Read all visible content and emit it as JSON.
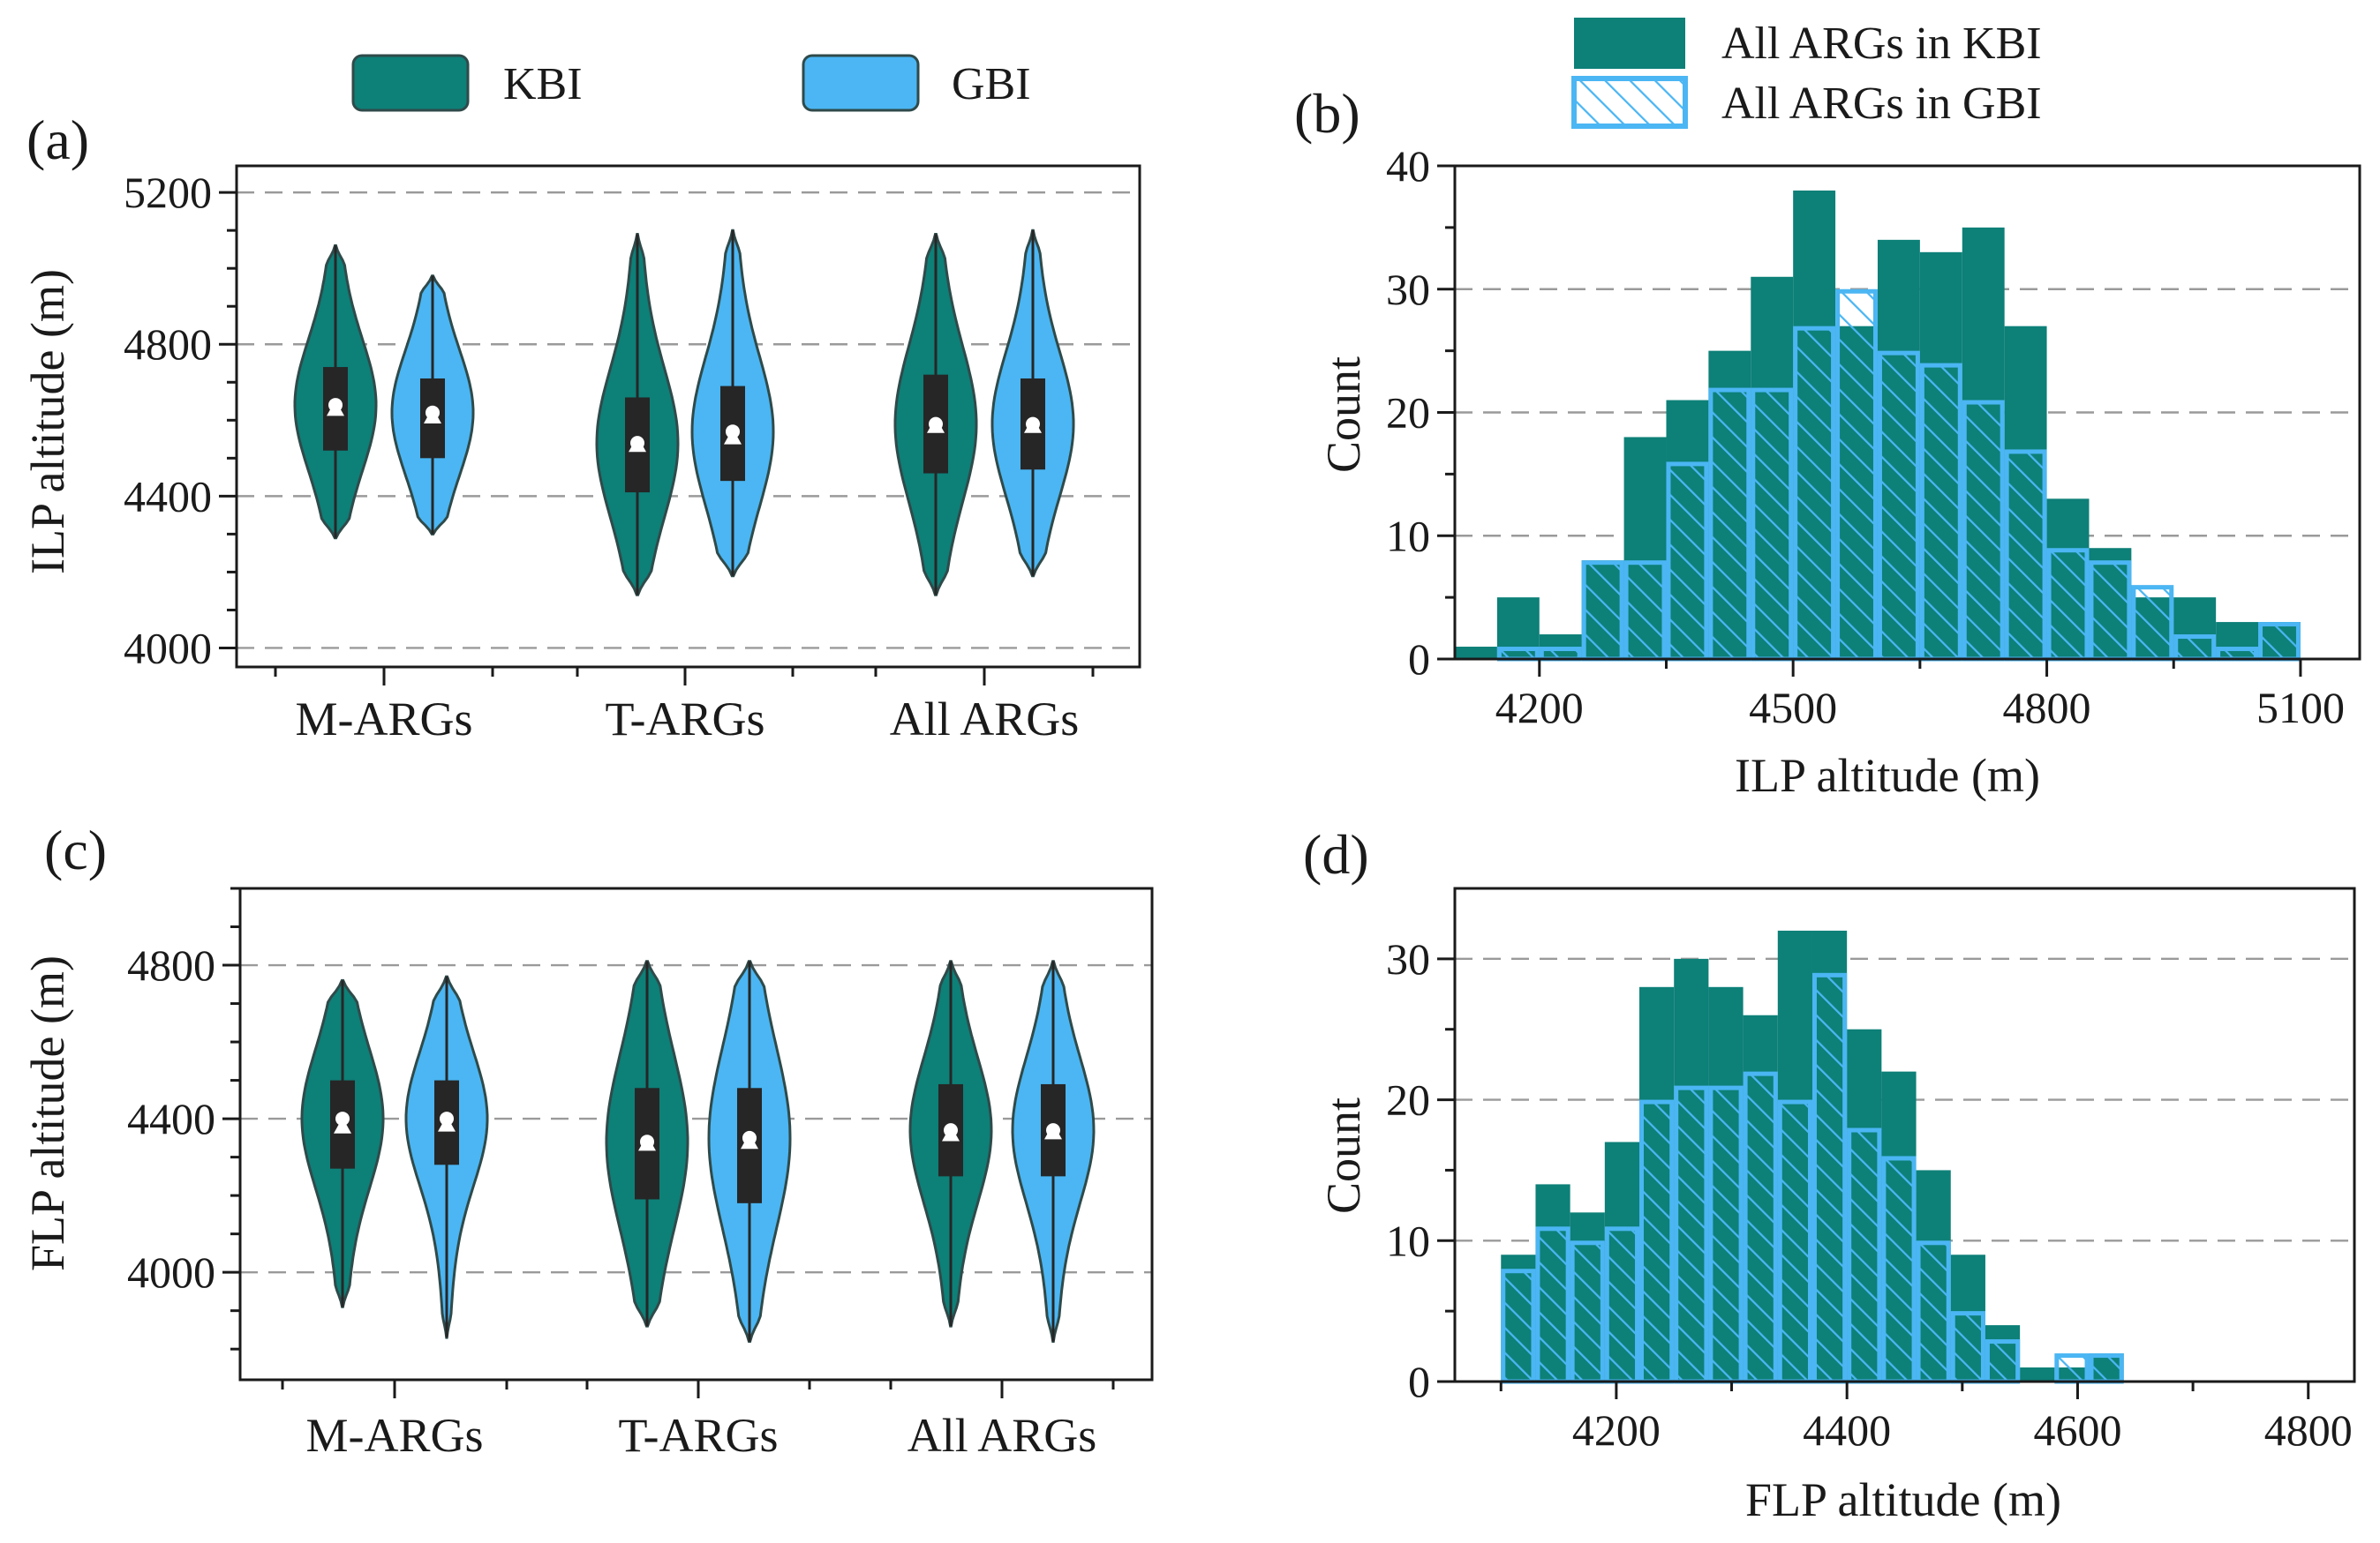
{
  "colors": {
    "kbi": "#0d8078",
    "gbi": "#4bb6f3",
    "outline": "#2f4a4a",
    "box": "#262626",
    "grid": "#9a9a9a"
  },
  "legend_top": {
    "kbi": "KBI",
    "gbi": "GBI"
  },
  "legend_hist": {
    "kbi": "All ARGs in KBI",
    "gbi": "All ARGs in GBI"
  },
  "chart_data": [
    {
      "panel": "(a)",
      "type": "violin",
      "ylabel": "ILP altitude (m)",
      "ylim": [
        3950,
        5270
      ],
      "yticks": [
        4000,
        4400,
        4800,
        5200
      ],
      "ytick_labels": [
        "4000",
        "4400",
        "4800",
        "5200"
      ],
      "grid": true,
      "categories": [
        "M-ARGs",
        "T-ARGs",
        "All ARGs"
      ],
      "series": [
        {
          "name": "KBI",
          "groups": [
            {
              "min": 4290,
              "q1": 4520,
              "median": 4640,
              "q3": 4740,
              "max": 5060,
              "mean": 4630
            },
            {
              "min": 4140,
              "q1": 4410,
              "median": 4540,
              "q3": 4660,
              "max": 5090,
              "mean": 4535
            },
            {
              "min": 4140,
              "q1": 4460,
              "median": 4590,
              "q3": 4720,
              "max": 5090,
              "mean": 4585
            }
          ]
        },
        {
          "name": "GBI",
          "groups": [
            {
              "min": 4300,
              "q1": 4500,
              "median": 4620,
              "q3": 4710,
              "max": 4980,
              "mean": 4610
            },
            {
              "min": 4190,
              "q1": 4440,
              "median": 4570,
              "q3": 4690,
              "max": 5100,
              "mean": 4555
            },
            {
              "min": 4190,
              "q1": 4470,
              "median": 4590,
              "q3": 4710,
              "max": 5100,
              "mean": 4585
            }
          ]
        }
      ]
    },
    {
      "panel": "(b)",
      "type": "histogram",
      "xlabel": "ILP altitude (m)",
      "ylabel": "Count",
      "xlim": [
        4100,
        5170
      ],
      "ylim": [
        0,
        40
      ],
      "xticks": [
        4200,
        4500,
        4800,
        5100
      ],
      "xtick_labels": [
        "4200",
        "4500",
        "4800",
        "5100"
      ],
      "yticks": [
        0,
        10,
        20,
        30,
        40
      ],
      "ytick_labels": [
        "0",
        "10",
        "20",
        "30",
        "40"
      ],
      "grid": true,
      "bin_start": 4100,
      "bin_width": 50,
      "series": [
        {
          "name": "All ARGs in KBI",
          "values": [
            1,
            5,
            2,
            8,
            18,
            21,
            25,
            31,
            38,
            27,
            34,
            33,
            35,
            27,
            13,
            9,
            5,
            5,
            3,
            3
          ]
        },
        {
          "name": "All ARGs in GBI",
          "values": [
            0,
            1,
            1,
            8,
            8,
            16,
            22,
            22,
            27,
            30,
            25,
            24,
            21,
            17,
            9,
            8,
            6,
            2,
            1,
            3
          ]
        }
      ]
    },
    {
      "panel": "(c)",
      "type": "violin",
      "ylabel": "FLP altitude (m)",
      "ylim": [
        3720,
        5000
      ],
      "yticks": [
        4000,
        4400,
        4800
      ],
      "ytick_labels": [
        "4000",
        "4400",
        "4800"
      ],
      "grid": true,
      "categories": [
        "M-ARGs",
        "T-ARGs",
        "All ARGs"
      ],
      "series": [
        {
          "name": "KBI",
          "groups": [
            {
              "min": 3910,
              "q1": 4270,
              "median": 4400,
              "q3": 4500,
              "max": 4760,
              "mean": 4380
            },
            {
              "min": 3860,
              "q1": 4190,
              "median": 4340,
              "q3": 4480,
              "max": 4810,
              "mean": 4335
            },
            {
              "min": 3860,
              "q1": 4250,
              "median": 4370,
              "q3": 4490,
              "max": 4810,
              "mean": 4360
            }
          ]
        },
        {
          "name": "GBI",
          "groups": [
            {
              "min": 3830,
              "q1": 4280,
              "median": 4400,
              "q3": 4500,
              "max": 4770,
              "mean": 4385
            },
            {
              "min": 3820,
              "q1": 4180,
              "median": 4350,
              "q3": 4480,
              "max": 4810,
              "mean": 4340
            },
            {
              "min": 3820,
              "q1": 4250,
              "median": 4370,
              "q3": 4490,
              "max": 4810,
              "mean": 4365
            }
          ]
        }
      ]
    },
    {
      "panel": "(d)",
      "type": "histogram",
      "xlabel": "FLP altitude (m)",
      "ylabel": "Count",
      "xlim": [
        4060,
        4840
      ],
      "ylim": [
        0,
        35
      ],
      "xticks": [
        4200,
        4400,
        4600,
        4800
      ],
      "xtick_labels": [
        "4200",
        "4400",
        "4600",
        "4800"
      ],
      "yticks": [
        0,
        10,
        20,
        30
      ],
      "ytick_labels": [
        "0",
        "10",
        "20",
        "30"
      ],
      "grid": true,
      "bin_start": 4100,
      "bin_width": 30,
      "series": [
        {
          "name": "All ARGs in KBI",
          "values": [
            9,
            14,
            12,
            17,
            28,
            30,
            28,
            26,
            32,
            32,
            25,
            22,
            15,
            9,
            4,
            1,
            1,
            2
          ]
        },
        {
          "name": "All ARGs in GBI",
          "values": [
            8,
            11,
            10,
            11,
            20,
            21,
            21,
            22,
            20,
            29,
            18,
            16,
            10,
            5,
            3,
            0,
            2,
            2
          ]
        }
      ]
    }
  ]
}
